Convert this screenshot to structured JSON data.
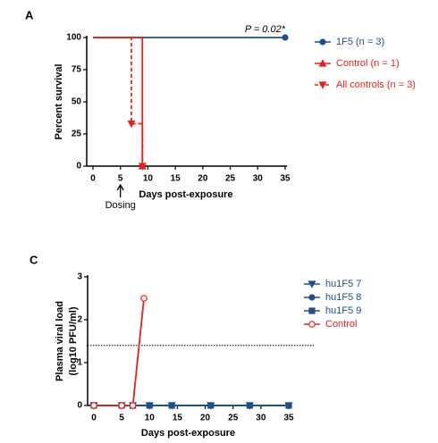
{
  "chart_data": [
    {
      "type": "line",
      "panel": "A",
      "ylabel": "Percent survival",
      "xlabel": "Days post-exposure",
      "annotation": "P = 0.02*",
      "dosing": {
        "text": "Dosing",
        "x": 5
      },
      "xlim": [
        0,
        35
      ],
      "xticks": [
        0,
        5,
        10,
        15,
        20,
        25,
        30,
        35
      ],
      "ylim": [
        0,
        100
      ],
      "yticks": [
        0,
        25,
        50,
        75,
        100
      ],
      "series": [
        {
          "name": "1F5 (n = 3)",
          "color": "#1f4e8c",
          "marker": "circle",
          "dash": false,
          "x": [
            0,
            35
          ],
          "values": [
            100,
            100
          ]
        },
        {
          "name": "Control (n = 1)",
          "color": "#e8211d",
          "marker": "triangle",
          "dash": false,
          "x": [
            0,
            9,
            9
          ],
          "values": [
            100,
            100,
            0
          ]
        },
        {
          "name": "All controls (n = 3)",
          "color": "#e8211d",
          "marker": "triangle-down",
          "dash": true,
          "x": [
            0,
            7,
            7,
            9,
            9
          ],
          "values": [
            100,
            100,
            33,
            33,
            0
          ]
        }
      ]
    },
    {
      "type": "line",
      "panel": "C",
      "ylabel": [
        "Plasma viral load",
        "(log10 PFU/ml)"
      ],
      "xlabel": "Days post-exposure",
      "reference_line": 1.4,
      "xlim": [
        0,
        35
      ],
      "xticks": [
        0,
        5,
        10,
        15,
        20,
        25,
        30,
        35
      ],
      "ylim": [
        0,
        3
      ],
      "yticks": [
        0,
        1,
        2,
        3
      ],
      "series": [
        {
          "name": "hu1F5 7",
          "color": "#1f4e8c",
          "marker": "triangle-down",
          "dash": false,
          "x": [
            0,
            5,
            7,
            10,
            14,
            21,
            28,
            35
          ],
          "values": [
            0,
            0,
            0,
            0,
            0,
            0,
            0,
            0
          ]
        },
        {
          "name": "hu1F5 8",
          "color": "#1f4e8c",
          "marker": "circle",
          "dash": false,
          "x": [
            0,
            5,
            7,
            10,
            14,
            21,
            28,
            35
          ],
          "values": [
            0,
            0,
            0,
            0,
            0,
            0,
            0,
            0
          ]
        },
        {
          "name": "hu1F5 9",
          "color": "#1f4e8c",
          "marker": "square",
          "dash": false,
          "x": [
            0,
            5,
            7,
            10,
            14,
            21,
            28,
            35
          ],
          "values": [
            0,
            0,
            0,
            0,
            0,
            0,
            0,
            0
          ]
        },
        {
          "name": "Control",
          "color": "#e8211d",
          "marker": "circle-open",
          "dash": false,
          "x": [
            0,
            5,
            7,
            9
          ],
          "values": [
            0,
            0,
            0,
            2.5
          ]
        }
      ]
    }
  ]
}
